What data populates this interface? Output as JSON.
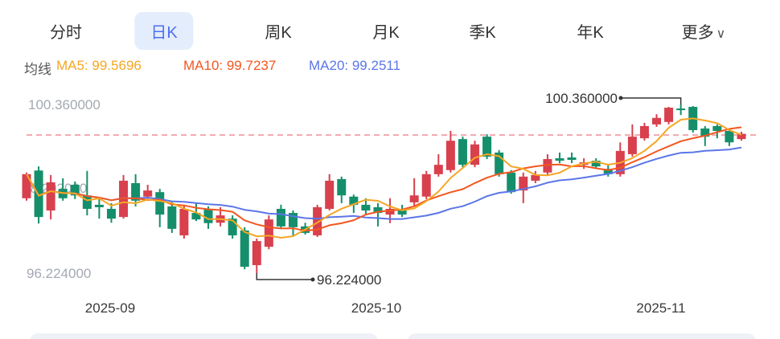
{
  "tabs": {
    "items": [
      {
        "label": "分时",
        "active": false
      },
      {
        "label": "日K",
        "active": true
      },
      {
        "label": "周K",
        "active": false
      },
      {
        "label": "月K",
        "active": false
      },
      {
        "label": "季K",
        "active": false
      },
      {
        "label": "年K",
        "active": false
      },
      {
        "label": "更多",
        "active": false,
        "chevron": "∨"
      }
    ],
    "active_color": "#4e6ef2",
    "active_bg": "#e4edfb"
  },
  "legend": {
    "title": "均线",
    "ma5": "MA5: 99.5696",
    "ma10": "MA10: 99.7237",
    "ma20": "MA20: 99.2511"
  },
  "chart_data": {
    "type": "candlestick",
    "title": "",
    "xlabel": "",
    "ylabel": "",
    "grid": false,
    "x_axis_labels": [
      "2025-09",
      "2025-10",
      "2025-11"
    ],
    "y_axis_labels": [
      "100.360000",
      "98.292000",
      "96.224000"
    ],
    "y_range": [
      96.224,
      100.36
    ],
    "ma_values": {
      "MA5": 99.5696,
      "MA10": 99.7237,
      "MA20": 99.2511
    },
    "ma_windows": [
      20,
      10,
      5
    ],
    "dashed_line_value": 99.61,
    "high_annotation": {
      "label": "100.360000",
      "value": 100.36,
      "candle_index": 54
    },
    "low_annotation": {
      "label": "96.224000",
      "value": 96.224,
      "candle_index": 19
    },
    "colors": {
      "up": "#d8404d",
      "down": "#158f6b",
      "ma5": "#f5a623",
      "ma10": "#f2571f",
      "ma20": "#5b76e8",
      "dashed_line": "#f2a6ae",
      "axis_text": "#a3a9b2",
      "annotation_text": "#333333"
    },
    "candles": [
      {
        "o": 98.06,
        "h": 98.69,
        "l": 98.0,
        "c": 98.65
      },
      {
        "o": 98.74,
        "h": 98.84,
        "l": 97.44,
        "c": 97.6
      },
      {
        "o": 97.76,
        "h": 98.63,
        "l": 97.54,
        "c": 98.45
      },
      {
        "o": 98.29,
        "h": 98.55,
        "l": 98.0,
        "c": 98.06
      },
      {
        "o": 98.39,
        "h": 98.47,
        "l": 98.04,
        "c": 98.13
      },
      {
        "o": 98.13,
        "h": 98.73,
        "l": 97.64,
        "c": 97.8
      },
      {
        "o": 97.9,
        "h": 98.06,
        "l": 97.56,
        "c": 97.84
      },
      {
        "o": 97.8,
        "h": 97.94,
        "l": 97.46,
        "c": 97.56
      },
      {
        "o": 97.6,
        "h": 98.63,
        "l": 97.56,
        "c": 98.49
      },
      {
        "o": 98.43,
        "h": 98.65,
        "l": 97.86,
        "c": 98.0
      },
      {
        "o": 98.1,
        "h": 98.39,
        "l": 98.0,
        "c": 98.25
      },
      {
        "o": 98.21,
        "h": 98.29,
        "l": 97.35,
        "c": 97.66
      },
      {
        "o": 97.86,
        "h": 98.0,
        "l": 97.21,
        "c": 97.31
      },
      {
        "o": 97.15,
        "h": 97.9,
        "l": 97.07,
        "c": 97.8
      },
      {
        "o": 97.7,
        "h": 97.94,
        "l": 97.5,
        "c": 97.54
      },
      {
        "o": 97.8,
        "h": 97.86,
        "l": 97.31,
        "c": 97.45
      },
      {
        "o": 97.46,
        "h": 97.84,
        "l": 97.37,
        "c": 97.64
      },
      {
        "o": 97.56,
        "h": 97.64,
        "l": 97.07,
        "c": 97.15
      },
      {
        "o": 97.27,
        "h": 97.35,
        "l": 96.32,
        "c": 96.38
      },
      {
        "o": 96.42,
        "h": 97.07,
        "l": 96.224,
        "c": 97.01
      },
      {
        "o": 96.87,
        "h": 97.64,
        "l": 96.81,
        "c": 97.54
      },
      {
        "o": 97.8,
        "h": 97.9,
        "l": 97.31,
        "c": 97.37
      },
      {
        "o": 97.7,
        "h": 97.76,
        "l": 97.15,
        "c": 97.35
      },
      {
        "o": 97.37,
        "h": 97.46,
        "l": 97.17,
        "c": 97.21
      },
      {
        "o": 97.15,
        "h": 97.9,
        "l": 97.11,
        "c": 97.84
      },
      {
        "o": 97.8,
        "h": 98.65,
        "l": 97.76,
        "c": 98.49
      },
      {
        "o": 98.53,
        "h": 98.59,
        "l": 97.94,
        "c": 98.13
      },
      {
        "o": 98.1,
        "h": 98.15,
        "l": 97.7,
        "c": 97.9
      },
      {
        "o": 97.9,
        "h": 98.06,
        "l": 97.64,
        "c": 97.76
      },
      {
        "o": 97.84,
        "h": 97.94,
        "l": 97.37,
        "c": 97.7
      },
      {
        "o": 97.66,
        "h": 98.06,
        "l": 97.45,
        "c": 97.8
      },
      {
        "o": 97.8,
        "h": 97.9,
        "l": 97.6,
        "c": 97.66
      },
      {
        "o": 97.96,
        "h": 98.55,
        "l": 97.86,
        "c": 98.13
      },
      {
        "o": 98.1,
        "h": 98.73,
        "l": 98.04,
        "c": 98.65
      },
      {
        "o": 98.65,
        "h": 99.14,
        "l": 98.59,
        "c": 98.88
      },
      {
        "o": 98.75,
        "h": 99.71,
        "l": 98.69,
        "c": 99.47
      },
      {
        "o": 99.51,
        "h": 99.57,
        "l": 98.82,
        "c": 98.88
      },
      {
        "o": 98.88,
        "h": 99.47,
        "l": 98.82,
        "c": 99.38
      },
      {
        "o": 99.57,
        "h": 99.63,
        "l": 99.02,
        "c": 99.08
      },
      {
        "o": 99.18,
        "h": 99.24,
        "l": 98.59,
        "c": 98.65
      },
      {
        "o": 98.69,
        "h": 98.75,
        "l": 98.17,
        "c": 98.21
      },
      {
        "o": 98.25,
        "h": 98.69,
        "l": 97.94,
        "c": 98.59
      },
      {
        "o": 98.49,
        "h": 98.73,
        "l": 98.43,
        "c": 98.63
      },
      {
        "o": 98.69,
        "h": 99.14,
        "l": 98.63,
        "c": 99.02
      },
      {
        "o": 99.04,
        "h": 99.18,
        "l": 98.92,
        "c": 98.98
      },
      {
        "o": 99.06,
        "h": 99.18,
        "l": 98.92,
        "c": 99.0
      },
      {
        "o": 98.88,
        "h": 99.04,
        "l": 98.78,
        "c": 98.94
      },
      {
        "o": 98.98,
        "h": 99.04,
        "l": 98.78,
        "c": 98.84
      },
      {
        "o": 98.78,
        "h": 98.88,
        "l": 98.59,
        "c": 98.65
      },
      {
        "o": 98.65,
        "h": 99.43,
        "l": 98.59,
        "c": 99.22
      },
      {
        "o": 99.14,
        "h": 99.87,
        "l": 99.08,
        "c": 99.57
      },
      {
        "o": 99.53,
        "h": 99.91,
        "l": 99.47,
        "c": 99.83
      },
      {
        "o": 99.87,
        "h": 100.12,
        "l": 99.81,
        "c": 100.03
      },
      {
        "o": 99.93,
        "h": 100.3,
        "l": 99.87,
        "c": 100.28
      },
      {
        "o": 100.26,
        "h": 100.36,
        "l": 100.1,
        "c": 100.22
      },
      {
        "o": 100.3,
        "h": 100.32,
        "l": 99.67,
        "c": 99.73
      },
      {
        "o": 99.77,
        "h": 99.83,
        "l": 99.34,
        "c": 99.57
      },
      {
        "o": 99.83,
        "h": 99.87,
        "l": 99.53,
        "c": 99.71
      },
      {
        "o": 99.71,
        "h": 99.77,
        "l": 99.34,
        "c": 99.43
      },
      {
        "o": 99.51,
        "h": 99.69,
        "l": 99.47,
        "c": 99.64
      }
    ]
  }
}
